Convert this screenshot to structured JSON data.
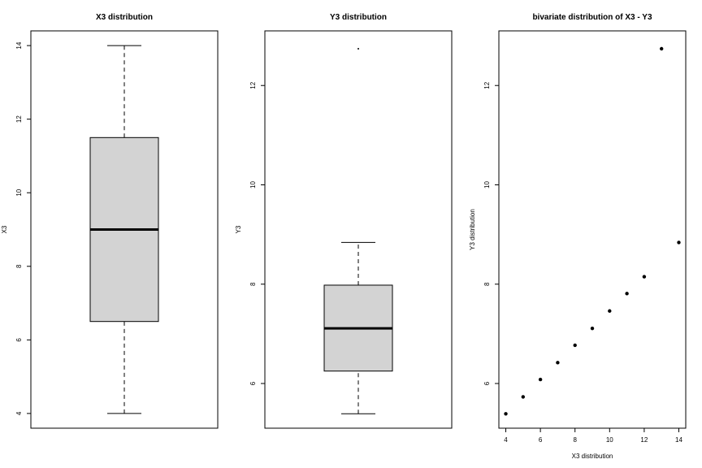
{
  "chart_data": [
    {
      "type": "boxplot",
      "title": "X3 distribution",
      "ylabel": "X3",
      "ylim": [
        3.6,
        14.4
      ],
      "yticks": [
        4,
        6,
        8,
        10,
        12,
        14
      ],
      "stats": {
        "min": 4,
        "q1": 6.5,
        "median": 9,
        "q3": 11.5,
        "max": 14
      },
      "outliers": [],
      "box_color": "#d3d3d3"
    },
    {
      "type": "boxplot",
      "title": "Y3 distribution",
      "ylabel": "Y3",
      "ylim": [
        5.1,
        13.1
      ],
      "yticks": [
        6,
        8,
        10,
        12
      ],
      "stats": {
        "min": 5.39,
        "q1": 6.25,
        "median": 7.11,
        "q3": 7.98,
        "max": 8.84
      },
      "outliers": [
        12.74
      ],
      "box_color": "#d3d3d3"
    },
    {
      "type": "scatter",
      "title": "bivariate distribution of X3 - Y3",
      "xlabel": "X3 distribution",
      "ylabel": "Y3 distribution",
      "xlim": [
        3.6,
        14.4
      ],
      "ylim": [
        5.1,
        13.1
      ],
      "xticks": [
        4,
        6,
        8,
        10,
        12,
        14
      ],
      "yticks": [
        6,
        8,
        10,
        12
      ],
      "x": [
        4,
        5,
        6,
        7,
        8,
        9,
        10,
        11,
        12,
        13,
        14
      ],
      "y": [
        5.39,
        5.73,
        6.08,
        6.42,
        6.77,
        7.11,
        7.46,
        7.81,
        8.15,
        12.74,
        8.84
      ]
    }
  ]
}
